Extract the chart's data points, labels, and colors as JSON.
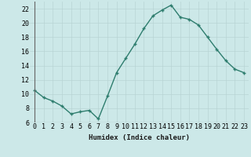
{
  "x": [
    0,
    1,
    2,
    3,
    4,
    5,
    6,
    7,
    8,
    9,
    10,
    11,
    12,
    13,
    14,
    15,
    16,
    17,
    18,
    19,
    20,
    21,
    22,
    23
  ],
  "y": [
    10.5,
    9.5,
    9.0,
    8.3,
    7.2,
    7.5,
    7.7,
    6.5,
    9.7,
    13.0,
    15.0,
    17.0,
    19.2,
    21.0,
    21.8,
    22.5,
    20.8,
    20.5,
    19.7,
    18.0,
    16.3,
    14.7,
    13.5,
    13.0
  ],
  "line_color": "#2e7d6e",
  "marker": "+",
  "marker_size": 4,
  "bg_color": "#cce8e8",
  "grid_color": "#b8d4d4",
  "xlabel": "Humidex (Indice chaleur)",
  "ylim": [
    6,
    23
  ],
  "xlim": [
    -0.5,
    23.5
  ],
  "yticks": [
    6,
    8,
    10,
    12,
    14,
    16,
    18,
    20,
    22
  ],
  "xtick_labels": [
    "0",
    "1",
    "2",
    "3",
    "4",
    "5",
    "6",
    "7",
    "8",
    "9",
    "10",
    "11",
    "12",
    "13",
    "14",
    "15",
    "16",
    "17",
    "18",
    "19",
    "20",
    "21",
    "22",
    "23"
  ],
  "label_fontsize": 6.5,
  "tick_fontsize": 6.0
}
